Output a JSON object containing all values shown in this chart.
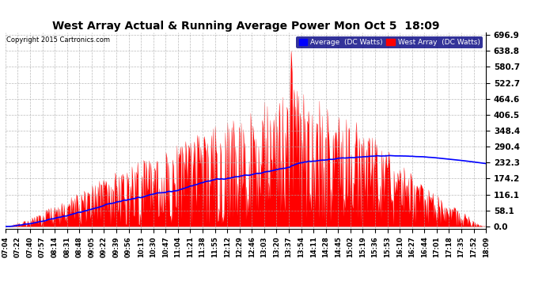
{
  "title": "West Array Actual & Running Average Power Mon Oct 5  18:09",
  "copyright": "Copyright 2015 Cartronics.com",
  "ylabel_values": [
    0.0,
    58.1,
    116.1,
    174.2,
    232.3,
    290.4,
    348.4,
    406.5,
    464.6,
    522.7,
    580.7,
    638.8,
    696.9
  ],
  "ymax": 696.9,
  "ymin": 0.0,
  "legend_avg_label": "Average  (DC Watts)",
  "legend_west_label": "West Array  (DC Watts)",
  "avg_color": "#0000ff",
  "west_color": "#ff0000",
  "bg_color": "#ffffff",
  "grid_color": "#aaaaaa",
  "title_color": "#000000",
  "xtick_labels": [
    "07:04",
    "07:22",
    "07:40",
    "07:57",
    "08:14",
    "08:31",
    "08:48",
    "09:05",
    "09:22",
    "09:39",
    "09:56",
    "10:13",
    "10:30",
    "10:47",
    "11:04",
    "11:21",
    "11:38",
    "11:55",
    "12:12",
    "12:29",
    "12:46",
    "13:03",
    "13:20",
    "13:37",
    "13:54",
    "14:11",
    "14:28",
    "14:45",
    "15:02",
    "15:19",
    "15:36",
    "15:53",
    "16:10",
    "16:27",
    "16:44",
    "17:01",
    "17:18",
    "17:35",
    "17:52",
    "18:09"
  ]
}
